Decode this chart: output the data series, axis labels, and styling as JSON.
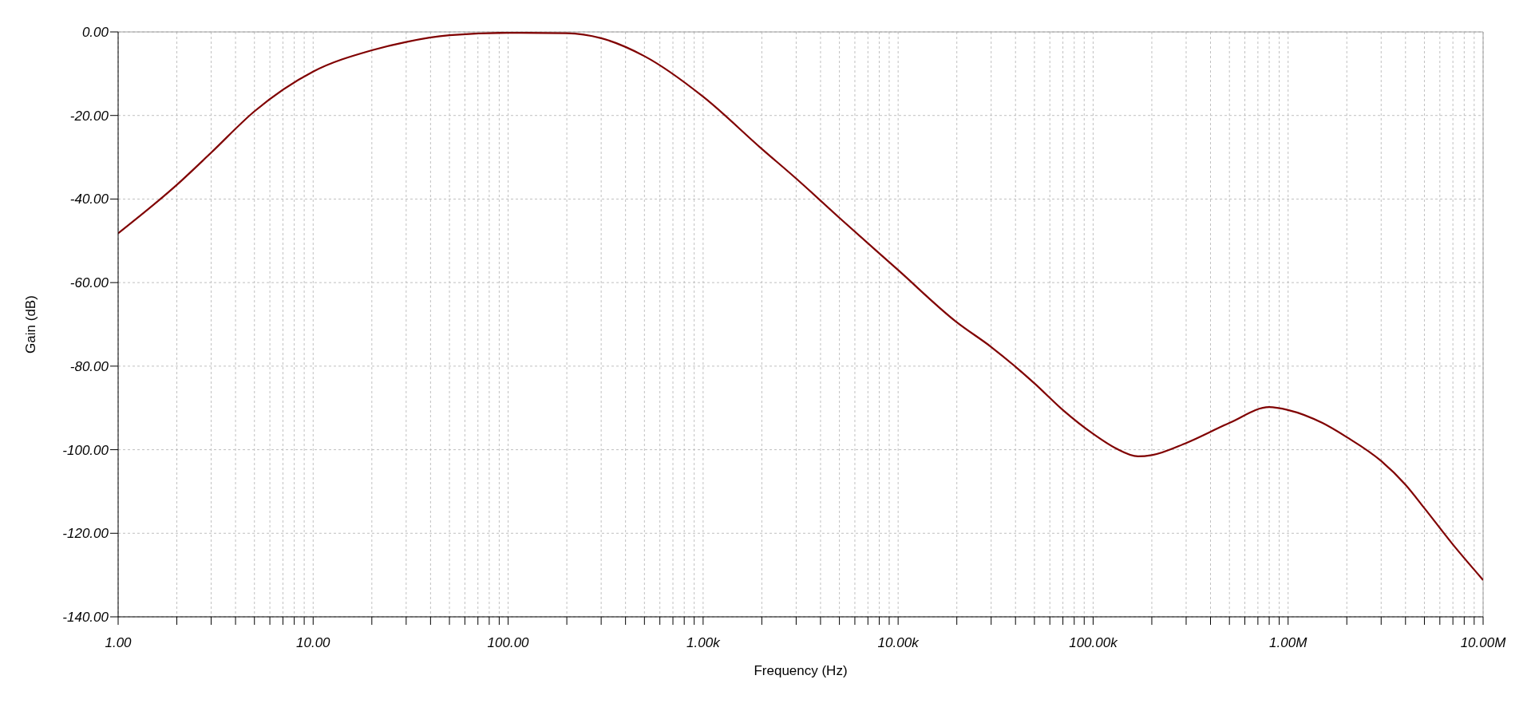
{
  "chart_data": {
    "type": "line",
    "xlabel": "Frequency (Hz)",
    "ylabel": "Gain (dB)",
    "log": "x",
    "grid": true,
    "legend": false,
    "marker": "none",
    "line_style": "solid",
    "x": [
      1,
      2,
      3,
      5,
      10,
      20,
      30,
      50,
      100,
      200,
      300,
      500,
      1000,
      2000,
      3000,
      5000,
      10000,
      20000,
      30000,
      50000,
      70000,
      100000,
      130000,
      170000,
      200000,
      300000,
      500000,
      800000,
      1000000,
      1500000,
      2000000,
      3000000,
      4000000,
      5000000,
      7000000,
      10000000
    ],
    "series": [
      {
        "color": "#800000",
        "values": [
          -48.2,
          -36.6,
          -28.9,
          -19,
          -9.5,
          -4.4,
          -2.4,
          -0.8,
          -0.2,
          -0.3,
          -1.5,
          -5.8,
          -15.5,
          -28,
          -35.1,
          -44.5,
          -57,
          -69.5,
          -75.4,
          -84.1,
          -90.5,
          -96.2,
          -99.6,
          -101.6,
          -101.3,
          -98.4,
          -93.6,
          -89.8,
          -90.5,
          -93.6,
          -97,
          -102.7,
          -108.4,
          -114,
          -122.7,
          -131.2
        ]
      }
    ],
    "xlim": [
      1,
      10000000
    ],
    "ylim": [
      -140,
      0
    ],
    "xticks": [
      {
        "value": 1,
        "label": "1.00"
      },
      {
        "value": 2,
        "label": null
      },
      {
        "value": 3,
        "label": null
      },
      {
        "value": 4,
        "label": null
      },
      {
        "value": 5,
        "label": null
      },
      {
        "value": 6,
        "label": null
      },
      {
        "value": 7,
        "label": null
      },
      {
        "value": 8,
        "label": null
      },
      {
        "value": 9,
        "label": null
      },
      {
        "value": 10,
        "label": "10.00"
      },
      {
        "value": 20,
        "label": null
      },
      {
        "value": 30,
        "label": null
      },
      {
        "value": 40,
        "label": null
      },
      {
        "value": 50,
        "label": null
      },
      {
        "value": 60,
        "label": null
      },
      {
        "value": 70,
        "label": null
      },
      {
        "value": 80,
        "label": null
      },
      {
        "value": 90,
        "label": null
      },
      {
        "value": 100,
        "label": "100.00"
      },
      {
        "value": 200,
        "label": null
      },
      {
        "value": 300,
        "label": null
      },
      {
        "value": 400,
        "label": null
      },
      {
        "value": 500,
        "label": null
      },
      {
        "value": 600,
        "label": null
      },
      {
        "value": 700,
        "label": null
      },
      {
        "value": 800,
        "label": null
      },
      {
        "value": 900,
        "label": null
      },
      {
        "value": 1000,
        "label": "1.00k"
      },
      {
        "value": 2000,
        "label": null
      },
      {
        "value": 3000,
        "label": null
      },
      {
        "value": 4000,
        "label": null
      },
      {
        "value": 5000,
        "label": null
      },
      {
        "value": 6000,
        "label": null
      },
      {
        "value": 7000,
        "label": null
      },
      {
        "value": 8000,
        "label": null
      },
      {
        "value": 9000,
        "label": null
      },
      {
        "value": 10000,
        "label": "10.00k"
      },
      {
        "value": 20000,
        "label": null
      },
      {
        "value": 30000,
        "label": null
      },
      {
        "value": 40000,
        "label": null
      },
      {
        "value": 50000,
        "label": null
      },
      {
        "value": 60000,
        "label": null
      },
      {
        "value": 70000,
        "label": null
      },
      {
        "value": 80000,
        "label": null
      },
      {
        "value": 90000,
        "label": null
      },
      {
        "value": 100000,
        "label": "100.00k"
      },
      {
        "value": 200000,
        "label": null
      },
      {
        "value": 300000,
        "label": null
      },
      {
        "value": 400000,
        "label": null
      },
      {
        "value": 500000,
        "label": null
      },
      {
        "value": 600000,
        "label": null
      },
      {
        "value": 700000,
        "label": null
      },
      {
        "value": 800000,
        "label": null
      },
      {
        "value": 900000,
        "label": null
      },
      {
        "value": 1000000,
        "label": "1.00M"
      },
      {
        "value": 2000000,
        "label": null
      },
      {
        "value": 3000000,
        "label": null
      },
      {
        "value": 4000000,
        "label": null
      },
      {
        "value": 5000000,
        "label": null
      },
      {
        "value": 6000000,
        "label": null
      },
      {
        "value": 7000000,
        "label": null
      },
      {
        "value": 8000000,
        "label": null
      },
      {
        "value": 9000000,
        "label": null
      },
      {
        "value": 10000000,
        "label": "10.00M"
      }
    ],
    "yticks": [
      {
        "value": -140,
        "label": "-140.00"
      },
      {
        "value": -120,
        "label": "-120.00"
      },
      {
        "value": -100,
        "label": "-100.00"
      },
      {
        "value": -80,
        "label": "-80.00"
      },
      {
        "value": -60,
        "label": "-60.00"
      },
      {
        "value": -40,
        "label": "-40.00"
      },
      {
        "value": -20,
        "label": "-20.00"
      },
      {
        "value": 0,
        "label": "0.00"
      }
    ]
  }
}
